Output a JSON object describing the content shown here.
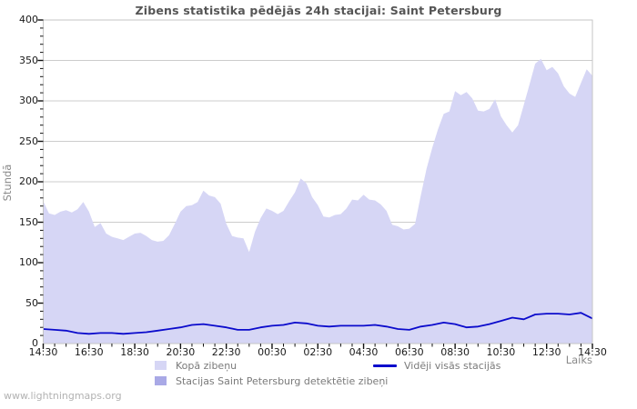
{
  "page": {
    "watermark": "www.lightningmaps.org"
  },
  "chart_data": {
    "type": "area",
    "title": "Zibens statistika pēdējās 24h stacijai: Saint Petersburg",
    "ylabel": "Stundā",
    "xlabel": "Laiks",
    "ylim": [
      0,
      400
    ],
    "y_tick_step": 50,
    "y_minor_step": 10,
    "x_span_hours": 24,
    "x_tick_labels": [
      "14:30",
      "16:30",
      "18:30",
      "20:30",
      "22:30",
      "00:30",
      "02:30",
      "04:30",
      "06:30",
      "08:30",
      "10:30",
      "12:30",
      "14:30"
    ],
    "x_tick_step_hours": 2,
    "x_minor_step_hours": 0.5,
    "grid": "horizontal-only",
    "legend_position": "bottom",
    "colors": {
      "area_total": "#d6d6f5",
      "area_station": "#a9a9e6",
      "line_avg": "#0b0bcc",
      "grid": "#cccccc",
      "border": "#c6c6c6",
      "tick": "#111111",
      "tick_text": "#1a1a1a",
      "title_text": "#555555",
      "muted_text": "#8a8a8a",
      "background": "#ffffff"
    },
    "series": [
      {
        "name": "Kopā zibeņu",
        "type": "area",
        "color": "#d6d6f5",
        "start": "14:30",
        "step_minutes": 15,
        "values": [
          176,
          161,
          159,
          163,
          165,
          162,
          166,
          175,
          163,
          144,
          149,
          136,
          132,
          130,
          128,
          132,
          136,
          137,
          133,
          128,
          126,
          127,
          134,
          148,
          163,
          170,
          171,
          175,
          189,
          183,
          181,
          173,
          148,
          133,
          131,
          130,
          113,
          138,
          155,
          167,
          164,
          160,
          164,
          176,
          187,
          204,
          198,
          181,
          171,
          157,
          156,
          159,
          160,
          167,
          178,
          177,
          184,
          178,
          177,
          172,
          164,
          147,
          145,
          141,
          142,
          148,
          183,
          216,
          242,
          265,
          284,
          287,
          312,
          307,
          311,
          303,
          288,
          287,
          290,
          302,
          281,
          270,
          261,
          270,
          295,
          320,
          346,
          352,
          338,
          342,
          334,
          318,
          309,
          305,
          322,
          339,
          331
        ]
      },
      {
        "name": "Vidēji visās stacijās",
        "type": "line",
        "color": "#0b0bcc",
        "start": "14:30",
        "step_minutes": 30,
        "values": [
          18,
          17,
          16,
          13,
          12,
          13,
          13,
          12,
          13,
          14,
          16,
          18,
          20,
          23,
          24,
          22,
          20,
          17,
          17,
          20,
          22,
          23,
          26,
          25,
          22,
          21,
          22,
          22,
          22,
          23,
          21,
          18,
          17,
          21,
          23,
          26,
          24,
          20,
          21,
          24,
          28,
          32,
          30,
          36,
          37,
          37,
          36,
          38,
          31
        ]
      },
      {
        "name": "Stacijas Saint Petersburg detektētie zibeņi",
        "type": "area",
        "color": "#a9a9e6",
        "visible_in_plot": false,
        "values": []
      }
    ],
    "legend": [
      {
        "label": "Kopā zibeņu",
        "swatch": "area",
        "color": "#d6d6f5"
      },
      {
        "label": "Vidēji visās stacijās",
        "swatch": "line",
        "color": "#0b0bcc"
      },
      {
        "label": "Stacijas Saint Petersburg detektētie zibeņi",
        "swatch": "area",
        "color": "#a9a9e6"
      }
    ]
  }
}
